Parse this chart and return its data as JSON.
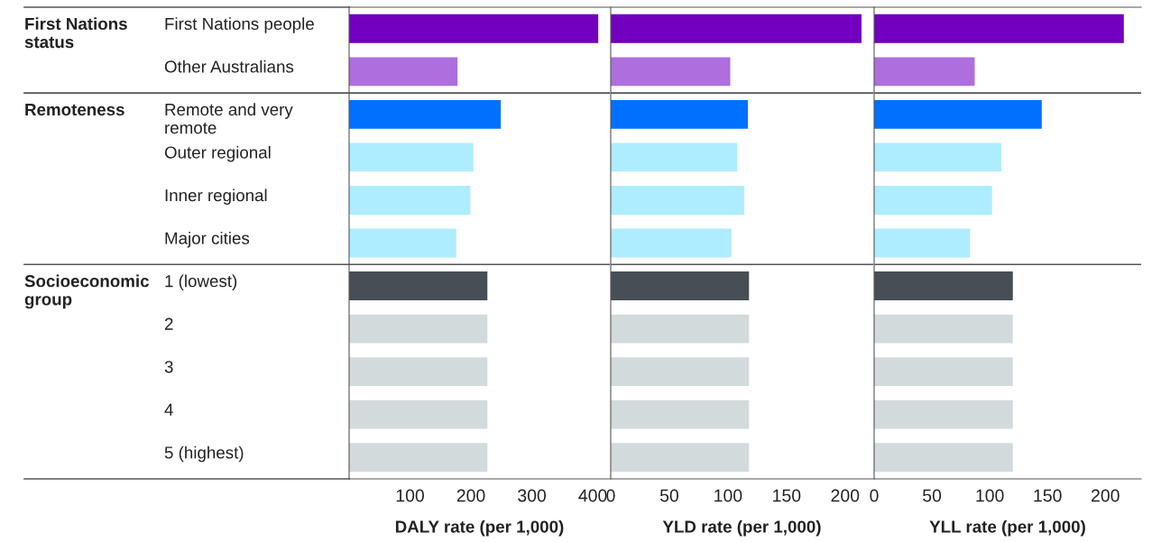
{
  "chart_data": [
    {
      "type": "bar",
      "orientation": "horizontal",
      "xlabel": "DALY rate (per 1,000)",
      "categories": [
        "First Nations people",
        "Other Australians",
        "Remote and very\nremote",
        "Outer regional",
        "Inner regional",
        "Major cities",
        "1 (lowest)",
        "2",
        "3",
        "4",
        "5 (highest)"
      ],
      "values": [
        409,
        178,
        249,
        204,
        199,
        176,
        227,
        227,
        227,
        227,
        227
      ],
      "colors": [
        "#7200be",
        "#ad6ede",
        "#0070ff",
        "#aeedff",
        "#aeedff",
        "#aeedff",
        "#474f55",
        "#d3dadc",
        "#d3dadc",
        "#d3dadc",
        "#d3dadc"
      ],
      "xlim": [
        0,
        428
      ],
      "xticks": [
        100,
        200,
        300,
        400
      ],
      "annotations": [
        "First Nations\nstatus",
        "Remoteness",
        "Socioeconomic\ngroup"
      ]
    },
    {
      "type": "bar",
      "orientation": "horizontal",
      "xlabel": "YLD rate (per 1,000)",
      "tick_labels": "x",
      "values": [
        214,
        102,
        117,
        108,
        114,
        103,
        118,
        118,
        118,
        118,
        118
      ],
      "colors": [
        "#7200be",
        "#ad6ede",
        "#0070ff",
        "#aeedff",
        "#aeedff",
        "#aeedff",
        "#474f55",
        "#d3dadc",
        "#d3dadc",
        "#d3dadc",
        "#d3dadc"
      ],
      "xlim": [
        0,
        224
      ],
      "xticks": [
        0,
        50,
        100,
        150,
        200
      ]
    },
    {
      "type": "bar",
      "orientation": "horizontal",
      "xlabel": "YLL rate (per 1,000)",
      "tick_labels": "x",
      "values": [
        216,
        87,
        145,
        110,
        102,
        83,
        120,
        120,
        120,
        120,
        120
      ],
      "colors": [
        "#7200be",
        "#ad6ede",
        "#0070ff",
        "#aeedff",
        "#aeedff",
        "#aeedff",
        "#474f55",
        "#d3dadc",
        "#d3dadc",
        "#d3dadc",
        "#d3dadc"
      ],
      "xlim": [
        0,
        231
      ],
      "xticks": [
        0,
        50,
        100,
        150,
        200
      ]
    }
  ]
}
